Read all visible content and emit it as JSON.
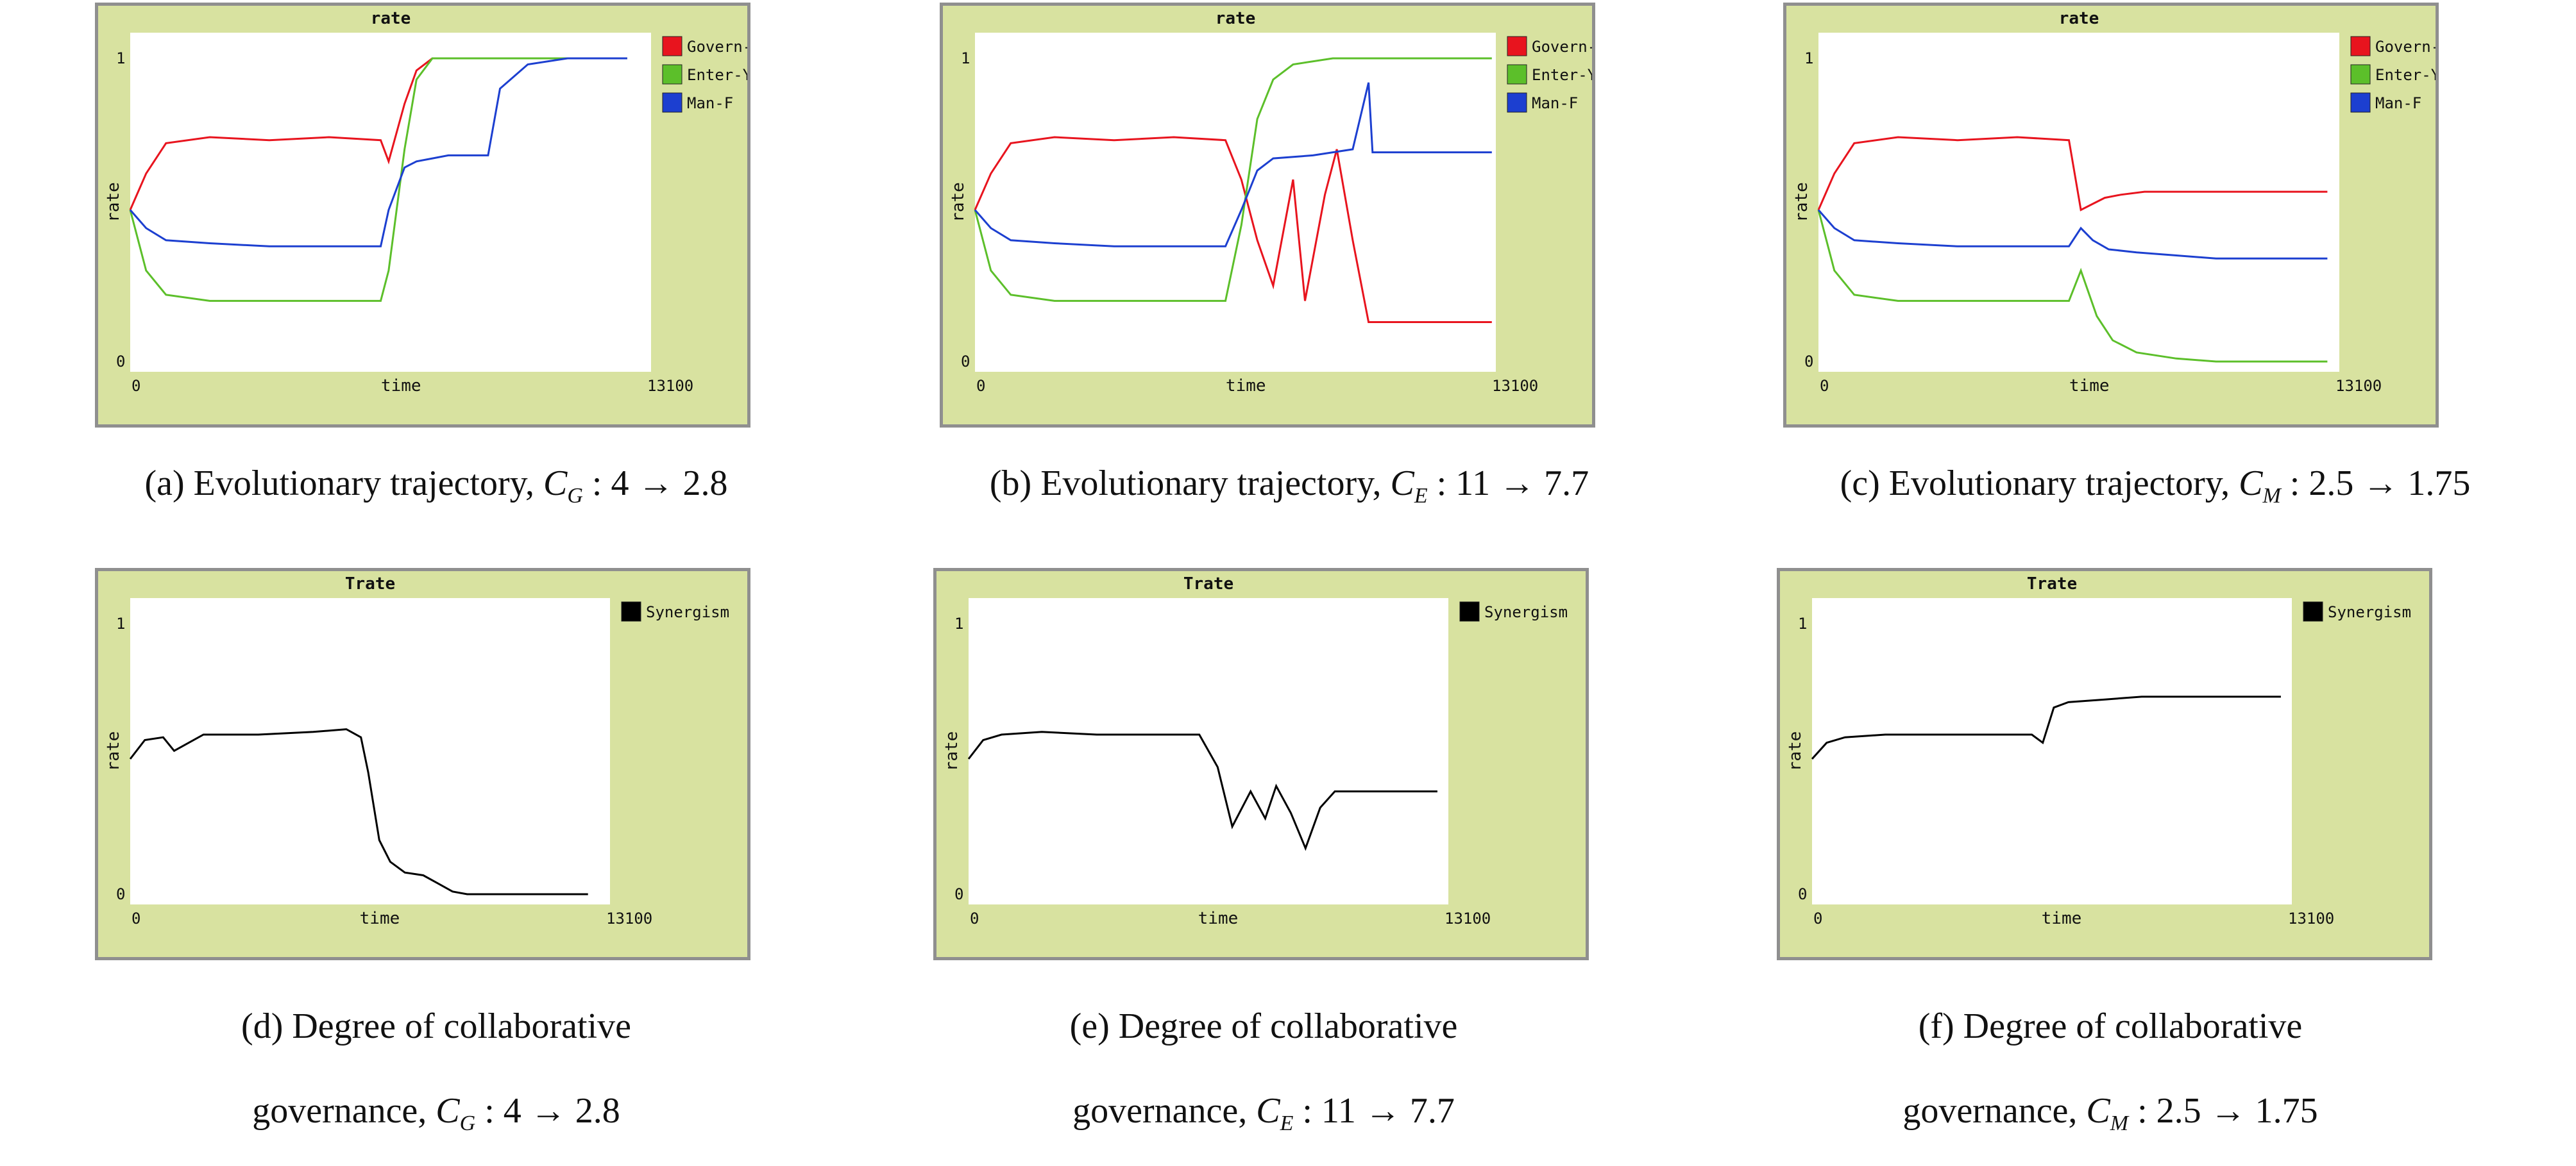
{
  "chart_data": [
    {
      "type": "line",
      "title": "rate",
      "xlabel": "time",
      "ylabel": "rate",
      "xlim": [
        0,
        13100
      ],
      "ylim": [
        0,
        1
      ],
      "x_ticks": [
        "0",
        "13100"
      ],
      "y_ticks": [
        "0",
        "1"
      ],
      "legend_position": "right",
      "series": [
        {
          "name": "Govern-M",
          "color": "#e8141e",
          "x": [
            0,
            400,
            900,
            2000,
            3500,
            5000,
            6300,
            6500,
            6900,
            7200,
            7600,
            8000,
            9000,
            10000,
            11000,
            12500
          ],
          "y": [
            0.5,
            0.62,
            0.72,
            0.74,
            0.73,
            0.74,
            0.73,
            0.66,
            0.85,
            0.96,
            1.0,
            1.0,
            1.0,
            1.0,
            1.0,
            1.0
          ]
        },
        {
          "name": "Enter-Y",
          "color": "#5cbf2a",
          "x": [
            0,
            400,
            900,
            2000,
            3500,
            5000,
            6300,
            6500,
            6900,
            7200,
            7600,
            8000,
            9000,
            10000,
            11000,
            12500
          ],
          "y": [
            0.5,
            0.3,
            0.22,
            0.2,
            0.2,
            0.2,
            0.2,
            0.3,
            0.7,
            0.93,
            1.0,
            1.0,
            1.0,
            1.0,
            1.0,
            1.0
          ]
        },
        {
          "name": "Man-F",
          "color": "#1c3fd0",
          "x": [
            0,
            400,
            900,
            2000,
            3500,
            5000,
            6300,
            6500,
            6900,
            7200,
            7600,
            8000,
            9000,
            9300,
            10000,
            11000,
            12500
          ],
          "y": [
            0.5,
            0.44,
            0.4,
            0.39,
            0.38,
            0.38,
            0.38,
            0.5,
            0.64,
            0.66,
            0.67,
            0.68,
            0.68,
            0.9,
            0.98,
            1.0,
            1.0
          ]
        }
      ]
    },
    {
      "type": "line",
      "title": "rate",
      "xlabel": "time",
      "ylabel": "rate",
      "xlim": [
        0,
        13100
      ],
      "ylim": [
        0,
        1
      ],
      "x_ticks": [
        "0",
        "13100"
      ],
      "y_ticks": [
        "0",
        "1"
      ],
      "legend_position": "right",
      "series": [
        {
          "name": "Govern-M",
          "color": "#e8141e",
          "x": [
            0,
            400,
            900,
            2000,
            3500,
            5000,
            6300,
            6700,
            7100,
            7500,
            8000,
            8300,
            8800,
            9100,
            9500,
            9900,
            10500,
            11500,
            13000
          ],
          "y": [
            0.5,
            0.62,
            0.72,
            0.74,
            0.73,
            0.74,
            0.73,
            0.6,
            0.4,
            0.25,
            0.6,
            0.2,
            0.55,
            0.7,
            0.4,
            0.13,
            0.13,
            0.13,
            0.13
          ]
        },
        {
          "name": "Enter-Y",
          "color": "#5cbf2a",
          "x": [
            0,
            400,
            900,
            2000,
            3500,
            5000,
            6300,
            6700,
            7100,
            7500,
            8000,
            9000,
            10000,
            11000,
            13000
          ],
          "y": [
            0.5,
            0.3,
            0.22,
            0.2,
            0.2,
            0.2,
            0.2,
            0.45,
            0.8,
            0.93,
            0.98,
            1.0,
            1.0,
            1.0,
            1.0
          ]
        },
        {
          "name": "Man-F",
          "color": "#1c3fd0",
          "x": [
            0,
            400,
            900,
            2000,
            3500,
            5000,
            6300,
            6700,
            7100,
            7500,
            8500,
            9500,
            9900,
            10000,
            10300,
            11000,
            13000
          ],
          "y": [
            0.5,
            0.44,
            0.4,
            0.39,
            0.38,
            0.38,
            0.38,
            0.5,
            0.63,
            0.67,
            0.68,
            0.7,
            0.92,
            0.69,
            0.69,
            0.69,
            0.69
          ]
        }
      ]
    },
    {
      "type": "line",
      "title": "rate",
      "xlabel": "time",
      "ylabel": "rate",
      "xlim": [
        0,
        13100
      ],
      "ylim": [
        0,
        1
      ],
      "x_ticks": [
        "0",
        "13100"
      ],
      "y_ticks": [
        "0",
        "1"
      ],
      "legend_position": "right",
      "series": [
        {
          "name": "Govern-M",
          "color": "#e8141e",
          "x": [
            0,
            400,
            900,
            2000,
            3500,
            5000,
            6300,
            6600,
            6900,
            7200,
            7600,
            8200,
            9000,
            10000,
            11000,
            12800
          ],
          "y": [
            0.5,
            0.62,
            0.72,
            0.74,
            0.73,
            0.74,
            0.73,
            0.5,
            0.52,
            0.54,
            0.55,
            0.56,
            0.56,
            0.56,
            0.56,
            0.56
          ]
        },
        {
          "name": "Enter-Y",
          "color": "#5cbf2a",
          "x": [
            0,
            400,
            900,
            2000,
            3500,
            5000,
            6300,
            6600,
            7000,
            7400,
            8000,
            9000,
            10000,
            11000,
            12800
          ],
          "y": [
            0.5,
            0.3,
            0.22,
            0.2,
            0.2,
            0.2,
            0.2,
            0.3,
            0.15,
            0.07,
            0.03,
            0.01,
            0.0,
            0.0,
            0.0
          ]
        },
        {
          "name": "Man-F",
          "color": "#1c3fd0",
          "x": [
            0,
            400,
            900,
            2000,
            3500,
            5000,
            6300,
            6600,
            6900,
            7300,
            8000,
            9000,
            10000,
            11000,
            12800
          ],
          "y": [
            0.5,
            0.44,
            0.4,
            0.39,
            0.38,
            0.38,
            0.38,
            0.44,
            0.4,
            0.37,
            0.36,
            0.35,
            0.34,
            0.34,
            0.34
          ]
        }
      ]
    },
    {
      "type": "line",
      "title": "Trate",
      "xlabel": "time",
      "ylabel": "rate",
      "xlim": [
        0,
        13100
      ],
      "ylim": [
        0,
        1
      ],
      "x_ticks": [
        "0",
        "13100"
      ],
      "y_ticks": [
        "0",
        "1"
      ],
      "legend_position": "right",
      "series": [
        {
          "name": "Synergism",
          "color": "#000000",
          "x": [
            0,
            400,
            900,
            1200,
            2000,
            3500,
            5000,
            5900,
            6300,
            6500,
            6800,
            7100,
            7500,
            8000,
            8400,
            8800,
            9200,
            10000,
            11000,
            12500
          ],
          "y": [
            0.5,
            0.57,
            0.58,
            0.53,
            0.59,
            0.59,
            0.6,
            0.61,
            0.58,
            0.45,
            0.2,
            0.12,
            0.08,
            0.07,
            0.04,
            0.01,
            0.0,
            0.0,
            0.0,
            0.0
          ]
        }
      ]
    },
    {
      "type": "line",
      "title": "Trate",
      "xlabel": "time",
      "ylabel": "rate",
      "xlim": [
        0,
        13100
      ],
      "ylim": [
        0,
        1
      ],
      "x_ticks": [
        "0",
        "13100"
      ],
      "y_ticks": [
        "0",
        "1"
      ],
      "legend_position": "right",
      "series": [
        {
          "name": "Synergism",
          "color": "#000000",
          "x": [
            0,
            400,
            900,
            2000,
            3500,
            5000,
            6300,
            6800,
            7200,
            7700,
            8100,
            8400,
            8800,
            9200,
            9600,
            10000,
            10300,
            11000,
            12800
          ],
          "y": [
            0.5,
            0.57,
            0.59,
            0.6,
            0.59,
            0.59,
            0.59,
            0.47,
            0.25,
            0.38,
            0.28,
            0.4,
            0.3,
            0.17,
            0.32,
            0.38,
            0.38,
            0.38,
            0.38
          ]
        }
      ]
    },
    {
      "type": "line",
      "title": "Trate",
      "xlabel": "time",
      "ylabel": "rate",
      "xlim": [
        0,
        13100
      ],
      "ylim": [
        0,
        1
      ],
      "x_ticks": [
        "0",
        "13100"
      ],
      "y_ticks": [
        "0",
        "1"
      ],
      "legend_position": "right",
      "series": [
        {
          "name": "Synergism",
          "color": "#000000",
          "x": [
            0,
            400,
            900,
            2000,
            3500,
            5000,
            6000,
            6300,
            6600,
            7000,
            8000,
            9000,
            10000,
            11000,
            12800
          ],
          "y": [
            0.5,
            0.56,
            0.58,
            0.59,
            0.59,
            0.59,
            0.59,
            0.56,
            0.69,
            0.71,
            0.72,
            0.73,
            0.73,
            0.73,
            0.73
          ]
        }
      ]
    }
  ],
  "captions": [
    {
      "pre": "(a) Evolutionary trajectory, ",
      "sym": "C",
      "sub": "G",
      "post": " : 4 → 2.8"
    },
    {
      "pre": "(b) Evolutionary trajectory, ",
      "sym": "C",
      "sub": "E",
      "post": " : 11 → 7.7"
    },
    {
      "pre": "(c) Evolutionary trajectory, ",
      "sym": "C",
      "sub": "M",
      "post": " : 2.5 → 1.75"
    },
    {
      "line1": "(d) Degree of collaborative",
      "pre": "governance, ",
      "sym": "C",
      "sub": "G",
      "post": " : 4 → 2.8"
    },
    {
      "line1": "(e) Degree of collaborative",
      "pre": "governance, ",
      "sym": "C",
      "sub": "E",
      "post": " : 11 → 7.7"
    },
    {
      "line1": "(f) Degree of collaborative",
      "pre": "governance, ",
      "sym": "C",
      "sub": "M",
      "post": " : 2.5 → 1.75"
    }
  ]
}
